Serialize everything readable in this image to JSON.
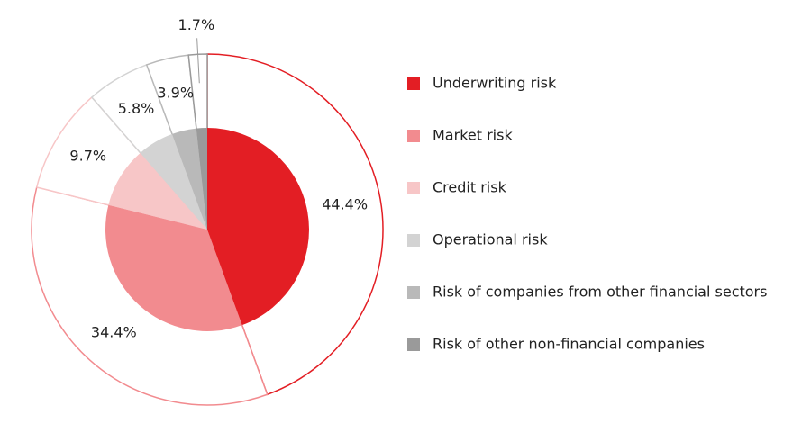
{
  "chart_data": {
    "type": "pie",
    "categories": [
      "Underwriting risk",
      "Market risk",
      "Credit risk",
      "Operational risk",
      "Risk of companies from other financial sectors",
      "Risk of other non-financial companies"
    ],
    "values": [
      44.4,
      34.4,
      9.7,
      5.8,
      3.9,
      1.7
    ],
    "value_labels": [
      "44.4%",
      "34.4%",
      "9.7%",
      "5.8%",
      "3.9%",
      "1.7%"
    ],
    "colors": [
      "#e31e24",
      "#f28b8f",
      "#f7c6c7",
      "#d3d3d3",
      "#b9b9b9",
      "#9a9a9a"
    ],
    "legend": "right"
  }
}
